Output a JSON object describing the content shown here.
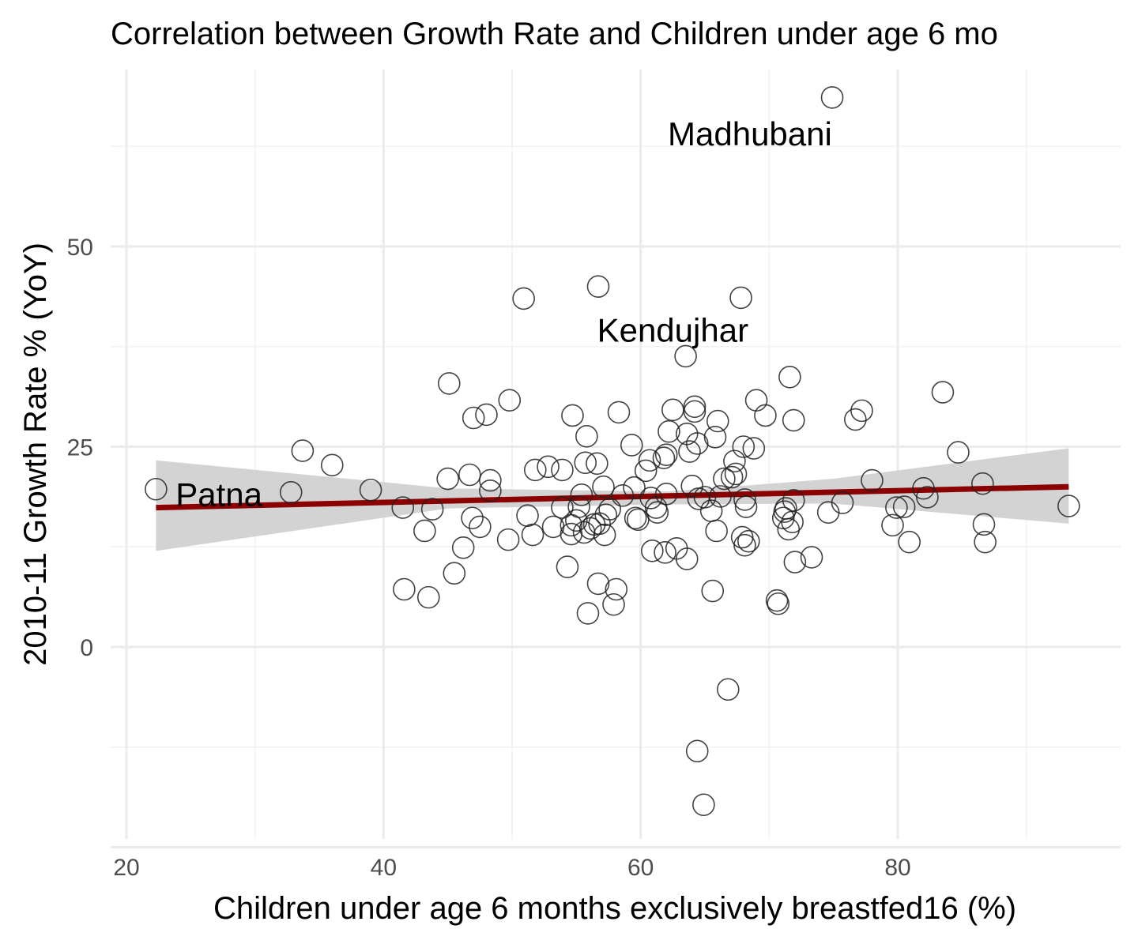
{
  "chart_data": {
    "type": "scatter",
    "title": "Correlation between Growth Rate and Children under age 6 mo",
    "xlabel": "Children under age 6 months exclusively breastfed16 (%)",
    "ylabel": "2010-11 Growth Rate % (YoY)",
    "xlim": [
      20,
      93
    ],
    "ylim": [
      -24,
      72
    ],
    "x_ticks": [
      20,
      40,
      60,
      80
    ],
    "y_ticks": [
      0,
      25,
      50
    ],
    "grid": true,
    "trend": {
      "color": "#8b0000",
      "line": [
        [
          22.3,
          17.4
        ],
        [
          93.3,
          20.0
        ]
      ],
      "band_upper": [
        [
          22.3,
          23.3
        ],
        [
          45,
          19.8
        ],
        [
          62,
          19.4
        ],
        [
          75,
          21.0
        ],
        [
          93.3,
          24.8
        ]
      ],
      "band_lower": [
        [
          22.3,
          12.0
        ],
        [
          45,
          17.3
        ],
        [
          62,
          17.8
        ],
        [
          75,
          17.9
        ],
        [
          93.3,
          15.4
        ]
      ]
    },
    "annotations": [
      {
        "text": "Madhubani",
        "x": 68.5,
        "y": 64
      },
      {
        "text": "Kendujhar",
        "x": 62.5,
        "y": 39.5
      },
      {
        "text": "Patna",
        "x": 27.2,
        "y": 19
      }
    ],
    "points": [
      [
        22.3,
        19.7
      ],
      [
        32.8,
        19.3
      ],
      [
        33.7,
        24.5
      ],
      [
        36.0,
        22.7
      ],
      [
        39.0,
        19.6
      ],
      [
        41.5,
        17.4
      ],
      [
        41.6,
        7.2
      ],
      [
        43.2,
        14.5
      ],
      [
        43.5,
        6.2
      ],
      [
        43.8,
        17.2
      ],
      [
        45.1,
        32.9
      ],
      [
        45.5,
        9.2
      ],
      [
        45.0,
        21.0
      ],
      [
        46.2,
        12.4
      ],
      [
        46.7,
        21.5
      ],
      [
        46.9,
        16.1
      ],
      [
        47.0,
        28.6
      ],
      [
        47.5,
        15.0
      ],
      [
        48.0,
        29.0
      ],
      [
        48.3,
        20.8
      ],
      [
        48.3,
        19.5
      ],
      [
        49.7,
        13.4
      ],
      [
        49.8,
        30.8
      ],
      [
        50.9,
        43.5
      ],
      [
        51.2,
        16.4
      ],
      [
        51.6,
        14.0
      ],
      [
        51.8,
        22.1
      ],
      [
        52.8,
        22.5
      ],
      [
        53.2,
        15.0
      ],
      [
        53.9,
        22.1
      ],
      [
        53.9,
        17.4
      ],
      [
        54.3,
        10.0
      ],
      [
        54.6,
        15.2
      ],
      [
        54.6,
        14.1
      ],
      [
        54.7,
        28.9
      ],
      [
        55.0,
        15.8
      ],
      [
        55.2,
        17.5
      ],
      [
        55.4,
        19.0
      ],
      [
        55.6,
        14.3
      ],
      [
        55.7,
        23.0
      ],
      [
        55.8,
        26.3
      ],
      [
        55.9,
        4.2
      ],
      [
        56.1,
        14.8
      ],
      [
        56.4,
        15.3
      ],
      [
        56.6,
        22.9
      ],
      [
        56.7,
        45.0
      ],
      [
        56.7,
        7.9
      ],
      [
        56.8,
        15.4
      ],
      [
        57.1,
        20.0
      ],
      [
        57.2,
        14.0
      ],
      [
        57.3,
        16.5
      ],
      [
        57.6,
        17.2
      ],
      [
        57.9,
        5.3
      ],
      [
        58.1,
        7.2
      ],
      [
        58.3,
        29.3
      ],
      [
        58.6,
        18.9
      ],
      [
        59.3,
        25.2
      ],
      [
        59.5,
        19.9
      ],
      [
        59.6,
        16.1
      ],
      [
        59.8,
        15.9
      ],
      [
        60.4,
        22.0
      ],
      [
        60.7,
        23.3
      ],
      [
        60.8,
        18.6
      ],
      [
        60.9,
        12.0
      ],
      [
        61.2,
        17.4
      ],
      [
        61.3,
        16.8
      ],
      [
        61.8,
        23.6
      ],
      [
        61.9,
        11.8
      ],
      [
        62.0,
        24.0
      ],
      [
        62.0,
        19.1
      ],
      [
        62.2,
        26.9
      ],
      [
        62.5,
        29.6
      ],
      [
        62.8,
        12.3
      ],
      [
        63.5,
        36.3
      ],
      [
        63.6,
        11.0
      ],
      [
        63.6,
        26.6
      ],
      [
        63.8,
        24.4
      ],
      [
        64.0,
        20.1
      ],
      [
        64.2,
        29.4
      ],
      [
        64.2,
        30.0
      ],
      [
        64.4,
        -13.0
      ],
      [
        64.4,
        25.4
      ],
      [
        64.5,
        18.5
      ],
      [
        64.9,
        -19.7
      ],
      [
        65.0,
        18.7
      ],
      [
        65.5,
        17.0
      ],
      [
        65.6,
        7.0
      ],
      [
        65.8,
        26.2
      ],
      [
        65.9,
        14.5
      ],
      [
        66.0,
        28.2
      ],
      [
        66.2,
        18.8
      ],
      [
        66.5,
        21.0
      ],
      [
        66.8,
        -5.3
      ],
      [
        67.1,
        21.2
      ],
      [
        67.3,
        23.2
      ],
      [
        67.4,
        21.6
      ],
      [
        67.8,
        43.6
      ],
      [
        67.9,
        13.7
      ],
      [
        68.0,
        25.0
      ],
      [
        68.1,
        12.7
      ],
      [
        68.1,
        18.4
      ],
      [
        68.2,
        17.5
      ],
      [
        68.4,
        13.2
      ],
      [
        68.8,
        24.8
      ],
      [
        69.0,
        30.8
      ],
      [
        69.7,
        28.9
      ],
      [
        70.6,
        5.8
      ],
      [
        70.7,
        5.4
      ],
      [
        71.1,
        16.1
      ],
      [
        71.2,
        16.9
      ],
      [
        71.3,
        17.3
      ],
      [
        71.5,
        14.7
      ],
      [
        71.6,
        33.7
      ],
      [
        71.8,
        15.6
      ],
      [
        71.9,
        18.3
      ],
      [
        71.9,
        28.3
      ],
      [
        72.0,
        10.6
      ],
      [
        73.3,
        11.2
      ],
      [
        74.6,
        16.8
      ],
      [
        74.9,
        68.6
      ],
      [
        75.7,
        18.0
      ],
      [
        76.7,
        28.4
      ],
      [
        77.2,
        29.5
      ],
      [
        78.0,
        20.8
      ],
      [
        79.6,
        15.2
      ],
      [
        79.9,
        17.4
      ],
      [
        80.5,
        17.5
      ],
      [
        80.9,
        13.1
      ],
      [
        82.0,
        19.8
      ],
      [
        82.3,
        18.7
      ],
      [
        83.5,
        31.8
      ],
      [
        84.7,
        24.3
      ],
      [
        86.6,
        20.4
      ],
      [
        86.7,
        15.3
      ],
      [
        86.8,
        13.1
      ],
      [
        93.3,
        17.6
      ]
    ]
  }
}
